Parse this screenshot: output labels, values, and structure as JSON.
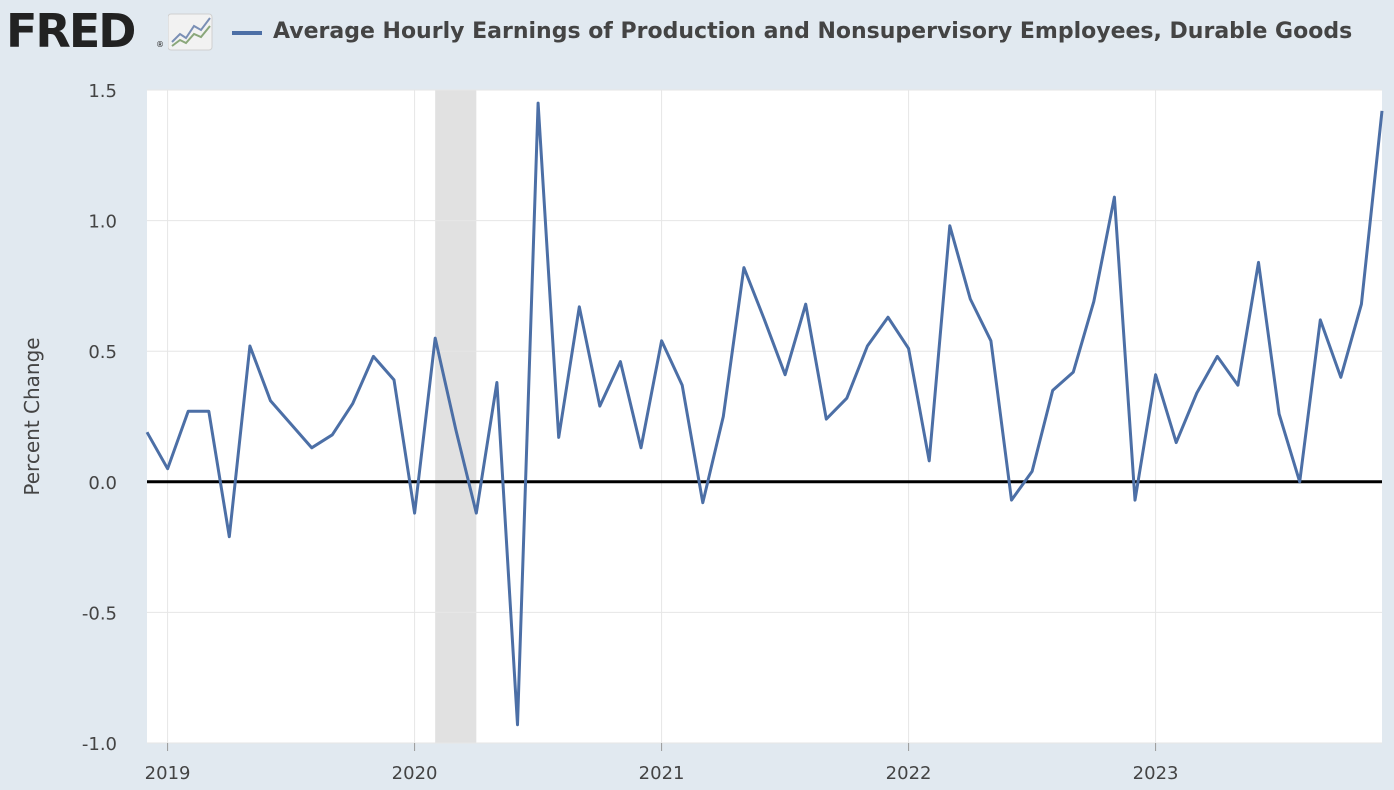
{
  "header": {
    "logo_text": "FRED",
    "logo_reg": "®",
    "series_title": "Average Hourly Earnings of Production and Nonsupervisory Employees, Durable Goods"
  },
  "colors": {
    "background": "#e1e9f0",
    "plot_background": "#ffffff",
    "series_line": "#4c6fa6",
    "zero_line": "#000000",
    "recession_band": "#e1e1e1",
    "gridline": "#e6e6e6"
  },
  "chart_data": {
    "type": "line",
    "title": "Average Hourly Earnings of Production and Nonsupervisory Employees, Durable Goods",
    "ylabel": "Percent Change",
    "xlabel": "",
    "ylim": [
      -1.0,
      1.5
    ],
    "yticks": [
      1.5,
      1.0,
      0.5,
      0.0,
      -0.5,
      -1.0
    ],
    "ytick_labels": [
      "1.5",
      "1.0",
      "0.5",
      "0.0",
      "-0.5",
      "-1.0"
    ],
    "xlim": [
      "2018-12",
      "2023-12"
    ],
    "xticks": [
      "2019-01",
      "2020-01",
      "2021-01",
      "2022-01",
      "2023-01"
    ],
    "xtick_labels": [
      "2019",
      "2020",
      "2021",
      "2022",
      "2023"
    ],
    "grid": true,
    "recession": {
      "start": "2020-02",
      "end": "2020-04"
    },
    "series": [
      {
        "name": "Average Hourly Earnings of Production and Nonsupervisory Employees, Durable Goods",
        "x": [
          "2018-12",
          "2019-01",
          "2019-02",
          "2019-03",
          "2019-04",
          "2019-05",
          "2019-06",
          "2019-07",
          "2019-08",
          "2019-09",
          "2019-10",
          "2019-11",
          "2019-12",
          "2020-01",
          "2020-02",
          "2020-03",
          "2020-04",
          "2020-05",
          "2020-06",
          "2020-07",
          "2020-08",
          "2020-09",
          "2020-10",
          "2020-11",
          "2020-12",
          "2021-01",
          "2021-02",
          "2021-03",
          "2021-04",
          "2021-05",
          "2021-06",
          "2021-07",
          "2021-08",
          "2021-09",
          "2021-10",
          "2021-11",
          "2021-12",
          "2022-01",
          "2022-02",
          "2022-03",
          "2022-04",
          "2022-05",
          "2022-06",
          "2022-07",
          "2022-08",
          "2022-09",
          "2022-10",
          "2022-11",
          "2022-12",
          "2023-01",
          "2023-02",
          "2023-03",
          "2023-04",
          "2023-05",
          "2023-06",
          "2023-07",
          "2023-08",
          "2023-09",
          "2023-10",
          "2023-11",
          "2023-12"
        ],
        "values": [
          0.19,
          0.05,
          0.27,
          0.27,
          -0.21,
          0.52,
          0.31,
          0.22,
          0.13,
          0.18,
          0.3,
          0.48,
          0.39,
          -0.12,
          0.55,
          0.2,
          -0.12,
          0.38,
          -0.93,
          1.45,
          0.17,
          0.67,
          0.29,
          0.46,
          0.13,
          0.54,
          0.37,
          -0.08,
          0.25,
          0.82,
          0.62,
          0.41,
          0.68,
          0.24,
          0.32,
          0.52,
          0.63,
          0.51,
          0.08,
          0.98,
          0.7,
          0.54,
          -0.07,
          0.04,
          0.35,
          0.42,
          0.69,
          1.09,
          -0.07,
          0.41,
          0.15,
          0.34,
          0.48,
          0.37,
          0.84,
          0.26,
          0.0,
          0.62,
          0.4,
          0.68,
          1.42
        ]
      }
    ]
  }
}
